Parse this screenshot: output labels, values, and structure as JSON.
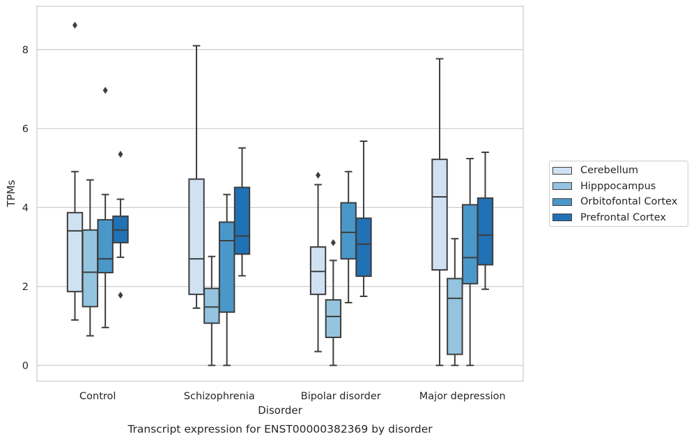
{
  "chart_data": {
    "type": "box",
    "title": "Transcript expression for ENST00000382369 by disorder",
    "xlabel": "Disorder",
    "ylabel": "TPMs",
    "ylim": [
      -0.4,
      9.1
    ],
    "yticks": [
      0,
      2,
      4,
      6,
      8
    ],
    "grid": "y",
    "legend_position": "right",
    "categories": [
      "Control",
      "Schizophrenia",
      "Bipolar disorder",
      "Major depression"
    ],
    "series": [
      {
        "name": "Cerebellum",
        "color": "#d0e1f2",
        "boxes": [
          {
            "whislo": 1.15,
            "q1": 1.87,
            "med": 3.41,
            "q3": 3.87,
            "whishi": 4.91,
            "fliers": [
              8.62
            ]
          },
          {
            "whislo": 1.45,
            "q1": 1.8,
            "med": 2.7,
            "q3": 4.72,
            "whishi": 8.1,
            "fliers": []
          },
          {
            "whislo": 0.35,
            "q1": 1.8,
            "med": 2.38,
            "q3": 3.0,
            "whishi": 4.58,
            "fliers": [
              4.82
            ]
          },
          {
            "whislo": 0.0,
            "q1": 2.42,
            "med": 4.27,
            "q3": 5.22,
            "whishi": 7.77,
            "fliers": []
          }
        ]
      },
      {
        "name": "Hipppocampus",
        "color": "#94c4df",
        "boxes": [
          {
            "whislo": 0.75,
            "q1": 1.49,
            "med": 2.36,
            "q3": 3.43,
            "whishi": 4.7,
            "fliers": []
          },
          {
            "whislo": 0.0,
            "q1": 1.07,
            "med": 1.48,
            "q3": 1.95,
            "whishi": 2.76,
            "fliers": []
          },
          {
            "whislo": 0.0,
            "q1": 0.71,
            "med": 1.24,
            "q3": 1.66,
            "whishi": 2.66,
            "fliers": [
              3.11
            ]
          },
          {
            "whislo": 0.0,
            "q1": 0.28,
            "med": 1.7,
            "q3": 2.2,
            "whishi": 3.21,
            "fliers": []
          }
        ]
      },
      {
        "name": "Orbitofontal Cortex",
        "color": "#4a98c9",
        "boxes": [
          {
            "whislo": 0.96,
            "q1": 2.35,
            "med": 2.7,
            "q3": 3.69,
            "whishi": 4.33,
            "fliers": [
              6.97
            ]
          },
          {
            "whislo": 0.0,
            "q1": 1.35,
            "med": 3.16,
            "q3": 3.63,
            "whishi": 4.33,
            "fliers": []
          },
          {
            "whislo": 1.59,
            "q1": 2.7,
            "med": 3.37,
            "q3": 4.12,
            "whishi": 4.91,
            "fliers": []
          },
          {
            "whislo": 0.0,
            "q1": 2.07,
            "med": 2.73,
            "q3": 4.07,
            "whishi": 5.24,
            "fliers": []
          }
        ]
      },
      {
        "name": "Prefrontal Cortex",
        "color": "#2171b5",
        "boxes": [
          {
            "whislo": 2.74,
            "q1": 3.11,
            "med": 3.43,
            "q3": 3.78,
            "whishi": 4.21,
            "fliers": [
              5.35,
              1.78
            ]
          },
          {
            "whislo": 2.27,
            "q1": 2.82,
            "med": 3.28,
            "q3": 4.51,
            "whishi": 5.51,
            "fliers": []
          },
          {
            "whislo": 1.75,
            "q1": 2.26,
            "med": 3.07,
            "q3": 3.73,
            "whishi": 5.68,
            "fliers": []
          },
          {
            "whislo": 1.93,
            "q1": 2.55,
            "med": 3.3,
            "q3": 4.24,
            "whishi": 5.4,
            "fliers": []
          }
        ]
      }
    ]
  }
}
